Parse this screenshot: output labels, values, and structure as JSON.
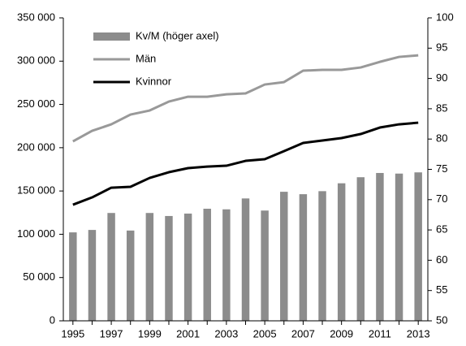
{
  "chart_data": {
    "type": "combo",
    "categories": [
      "1995",
      null,
      "1997",
      null,
      "1999",
      null,
      "2001",
      null,
      "2003",
      null,
      "2005",
      null,
      "2007",
      null,
      "2009",
      null,
      "2011",
      null,
      "2013"
    ],
    "series": [
      {
        "name": "Kv/M (höger axel)",
        "type": "bar",
        "axis": "y2",
        "color": "#8c8c8c",
        "values": [
          64.6,
          65.0,
          67.8,
          64.9,
          67.8,
          67.3,
          67.7,
          68.5,
          68.4,
          70.2,
          68.2,
          71.3,
          70.9,
          71.4,
          72.7,
          73.7,
          74.4,
          74.3,
          74.5
        ]
      },
      {
        "name": "Män",
        "type": "line",
        "axis": "y",
        "color": "#999999",
        "values": [
          207300,
          219500,
          227000,
          238300,
          243000,
          253300,
          258900,
          258900,
          261700,
          262700,
          273000,
          275800,
          289000,
          289900,
          289900,
          292700,
          299200,
          304900,
          306700
        ]
      },
      {
        "name": "Kvinnor",
        "type": "line",
        "axis": "y",
        "color": "#000000",
        "values": [
          134100,
          142600,
          153800,
          154800,
          165100,
          171700,
          176400,
          178200,
          179200,
          184800,
          186700,
          196000,
          205500,
          208300,
          211100,
          215800,
          223300,
          227000,
          228900
        ]
      }
    ],
    "ylim": [
      0,
      350000
    ],
    "yticks": [
      {
        "value": 0,
        "label": "0"
      },
      {
        "value": 50000,
        "label": "50 000"
      },
      {
        "value": 100000,
        "label": "100 000"
      },
      {
        "value": 150000,
        "label": "150 000"
      },
      {
        "value": 200000,
        "label": "200 000"
      },
      {
        "value": 250000,
        "label": "250 000"
      },
      {
        "value": 300000,
        "label": "300 000"
      },
      {
        "value": 350000,
        "label": "350 000"
      }
    ],
    "y2lim": [
      50,
      100
    ],
    "y2ticks": [
      50,
      55,
      60,
      65,
      70,
      75,
      80,
      85,
      90,
      95,
      100
    ],
    "legend": "upper left",
    "grid": false
  }
}
